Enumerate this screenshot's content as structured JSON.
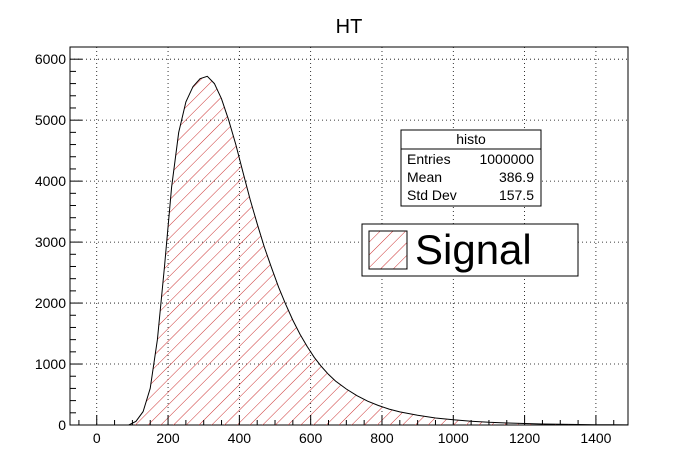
{
  "chart_data": {
    "type": "histogram",
    "title": "HT",
    "xlabel": "",
    "ylabel": "",
    "xlim": [
      -75,
      1490
    ],
    "ylim": [
      0,
      6200
    ],
    "x_ticks": [
      0,
      200,
      400,
      600,
      800,
      1000,
      1200,
      1400
    ],
    "y_ticks": [
      0,
      1000,
      2000,
      3000,
      4000,
      5000,
      6000
    ],
    "grid": true,
    "series": [
      {
        "name": "Signal",
        "fill_color": "#cc3333",
        "fill_style": "hatched",
        "points": [
          [
            90,
            0
          ],
          [
            110,
            60
          ],
          [
            130,
            220
          ],
          [
            150,
            600
          ],
          [
            170,
            1400
          ],
          [
            190,
            2600
          ],
          [
            210,
            3900
          ],
          [
            230,
            4800
          ],
          [
            250,
            5300
          ],
          [
            270,
            5550
          ],
          [
            290,
            5680
          ],
          [
            310,
            5720
          ],
          [
            330,
            5600
          ],
          [
            350,
            5350
          ],
          [
            370,
            5000
          ],
          [
            390,
            4600
          ],
          [
            410,
            4150
          ],
          [
            430,
            3700
          ],
          [
            450,
            3300
          ],
          [
            470,
            2920
          ],
          [
            490,
            2580
          ],
          [
            510,
            2260
          ],
          [
            530,
            1980
          ],
          [
            550,
            1720
          ],
          [
            570,
            1490
          ],
          [
            590,
            1290
          ],
          [
            610,
            1110
          ],
          [
            630,
            960
          ],
          [
            650,
            830
          ],
          [
            670,
            720
          ],
          [
            700,
            590
          ],
          [
            730,
            480
          ],
          [
            760,
            390
          ],
          [
            790,
            320
          ],
          [
            820,
            260
          ],
          [
            850,
            215
          ],
          [
            900,
            160
          ],
          [
            950,
            115
          ],
          [
            1000,
            85
          ],
          [
            1050,
            62
          ],
          [
            1100,
            45
          ],
          [
            1150,
            33
          ],
          [
            1200,
            24
          ],
          [
            1250,
            17
          ],
          [
            1300,
            12
          ],
          [
            1350,
            8
          ],
          [
            1400,
            5
          ],
          [
            1450,
            3
          ],
          [
            1490,
            2
          ]
        ]
      }
    ],
    "stats_box": {
      "name": "histo",
      "rows": [
        {
          "label": "Entries",
          "value": "1000000"
        },
        {
          "label": "Mean",
          "value": "386.9"
        },
        {
          "label": "Std Dev",
          "value": "157.5"
        }
      ]
    },
    "legend": {
      "position": "right",
      "entries": [
        {
          "label": "Signal"
        }
      ]
    }
  }
}
